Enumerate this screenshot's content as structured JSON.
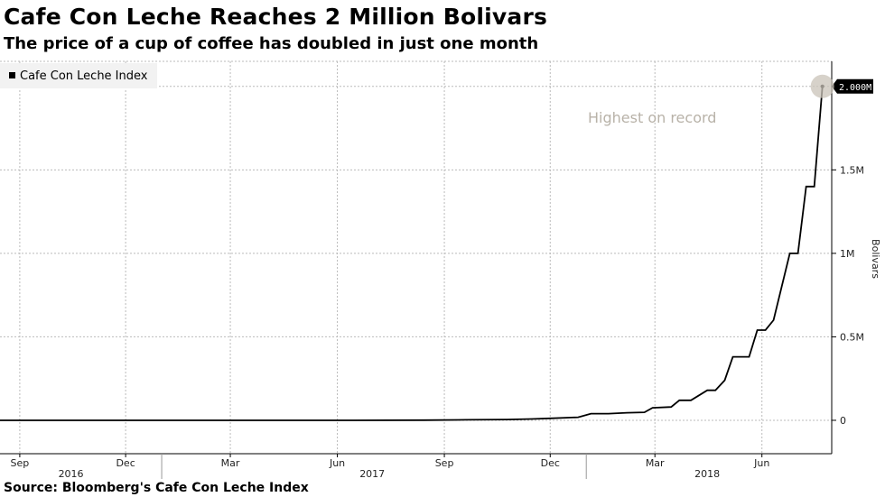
{
  "header": {
    "title": "Cafe Con Leche Reaches 2 Million Bolivars",
    "subtitle": "The price of a cup of coffee has doubled in just one month"
  },
  "footer": {
    "source": "Source: Bloomberg's Cafe Con Leche Index"
  },
  "chart_data": {
    "type": "line",
    "x_axis": {
      "type": "time",
      "month_ticks": [
        {
          "label": "Sep",
          "date": "2016-09-01"
        },
        {
          "label": "Dec",
          "date": "2016-12-01"
        },
        {
          "label": "Mar",
          "date": "2017-03-01"
        },
        {
          "label": "Jun",
          "date": "2017-06-01"
        },
        {
          "label": "Sep",
          "date": "2017-09-01"
        },
        {
          "label": "Dec",
          "date": "2017-12-01"
        },
        {
          "label": "Mar",
          "date": "2018-03-01"
        },
        {
          "label": "Jun",
          "date": "2018-06-01"
        }
      ],
      "year_labels": [
        {
          "label": "2016",
          "date": "2016-10-15"
        },
        {
          "label": "2017",
          "date": "2017-07-01"
        },
        {
          "label": "2018",
          "date": "2018-04-15"
        }
      ],
      "year_boundaries": [
        "2017-01-01",
        "2018-01-01"
      ],
      "range": [
        "2016-08-15",
        "2018-07-31"
      ]
    },
    "y_axis": {
      "label": "Bolivars",
      "position": "right",
      "range": [
        -200000,
        2150000
      ],
      "ticks": [
        {
          "value": 0,
          "label": "0"
        },
        {
          "value": 500000,
          "label": "0.5M"
        },
        {
          "value": 1000000,
          "label": "1M"
        },
        {
          "value": 1500000,
          "label": "1.5M"
        }
      ]
    },
    "grid": true,
    "legend": {
      "position": "top-left"
    },
    "series": [
      {
        "name": "Cafe Con Leche Index",
        "color": "#000000",
        "points": [
          {
            "x": "2016-08-15",
            "y": 0
          },
          {
            "x": "2017-06-15",
            "y": 0
          },
          {
            "x": "2017-08-15",
            "y": 1000
          },
          {
            "x": "2017-09-20",
            "y": 3000
          },
          {
            "x": "2017-10-25",
            "y": 5000
          },
          {
            "x": "2017-11-15",
            "y": 8000
          },
          {
            "x": "2017-12-01",
            "y": 12000
          },
          {
            "x": "2017-12-25",
            "y": 18000
          },
          {
            "x": "2018-01-05",
            "y": 40000
          },
          {
            "x": "2018-01-20",
            "y": 40000
          },
          {
            "x": "2018-02-05",
            "y": 45000
          },
          {
            "x": "2018-02-20",
            "y": 48000
          },
          {
            "x": "2018-02-27",
            "y": 75000
          },
          {
            "x": "2018-03-15",
            "y": 80000
          },
          {
            "x": "2018-03-22",
            "y": 120000
          },
          {
            "x": "2018-04-01",
            "y": 120000
          },
          {
            "x": "2018-04-15",
            "y": 180000
          },
          {
            "x": "2018-04-22",
            "y": 180000
          },
          {
            "x": "2018-04-30",
            "y": 240000
          },
          {
            "x": "2018-05-07",
            "y": 380000
          },
          {
            "x": "2018-05-21",
            "y": 380000
          },
          {
            "x": "2018-05-28",
            "y": 540000
          },
          {
            "x": "2018-06-04",
            "y": 540000
          },
          {
            "x": "2018-06-11",
            "y": 600000
          },
          {
            "x": "2018-06-25",
            "y": 1000000
          },
          {
            "x": "2018-07-02",
            "y": 1000000
          },
          {
            "x": "2018-07-09",
            "y": 1400000
          },
          {
            "x": "2018-07-16",
            "y": 1400000
          },
          {
            "x": "2018-07-23",
            "y": 2000000
          }
        ],
        "last_value_label": "2.000M"
      }
    ],
    "annotations": [
      {
        "text": "Highest on record",
        "x": "2018-07-23",
        "y": 2000000
      }
    ]
  }
}
